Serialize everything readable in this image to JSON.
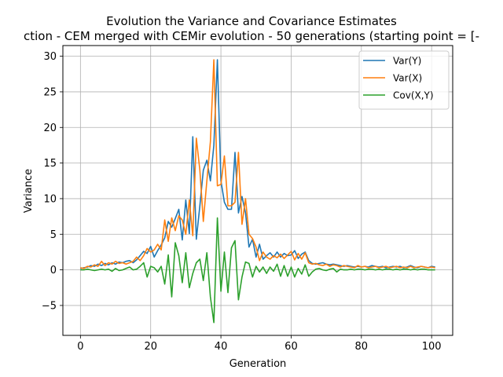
{
  "chart_data": {
    "type": "line",
    "title": "Evolution the Variance and Covariance Estimates",
    "subtitle": "ction - CEM merged with CEMir evolution - 50 generations (starting point = [-",
    "xlabel": "Generation",
    "ylabel": "Variance",
    "xlim": [
      -5,
      106
    ],
    "ylim": [
      -9.2,
      31.5
    ],
    "xticks": [
      0,
      20,
      40,
      60,
      80,
      100
    ],
    "yticks": [
      -5,
      0,
      5,
      10,
      15,
      20,
      25,
      30
    ],
    "grid": true,
    "legend_position": "top-right",
    "x": [
      0,
      1,
      2,
      3,
      4,
      5,
      6,
      7,
      8,
      9,
      10,
      11,
      12,
      13,
      14,
      15,
      16,
      17,
      18,
      19,
      20,
      21,
      22,
      23,
      24,
      25,
      26,
      27,
      28,
      29,
      30,
      31,
      32,
      33,
      34,
      35,
      36,
      37,
      38,
      39,
      40,
      41,
      42,
      43,
      44,
      45,
      46,
      47,
      48,
      49,
      50,
      51,
      52,
      53,
      54,
      55,
      56,
      57,
      58,
      59,
      60,
      61,
      62,
      63,
      64,
      65,
      66,
      67,
      68,
      69,
      70,
      71,
      72,
      73,
      74,
      75,
      76,
      77,
      78,
      79,
      80,
      81,
      82,
      83,
      84,
      85,
      86,
      87,
      88,
      89,
      90,
      91,
      92,
      93,
      94,
      95,
      96,
      97,
      98,
      99,
      100,
      101
    ],
    "series": [
      {
        "name": "Var(Y)",
        "color": "#1f77b4",
        "values": [
          0.2,
          0.3,
          0.4,
          0.6,
          0.5,
          0.8,
          0.6,
          0.9,
          0.7,
          1.0,
          0.8,
          1.1,
          1.0,
          1.2,
          1.3,
          1.0,
          1.4,
          2.0,
          2.6,
          2.3,
          3.3,
          1.8,
          2.7,
          3.5,
          4.5,
          6.8,
          6.0,
          7.2,
          8.5,
          4.2,
          9.8,
          5.1,
          18.7,
          4.3,
          9.0,
          14.0,
          15.4,
          12.5,
          17.5,
          29.5,
          12.5,
          9.5,
          8.5,
          8.5,
          16.5,
          8.0,
          10.3,
          8.0,
          3.2,
          4.3,
          1.8,
          3.6,
          1.5,
          2.0,
          2.4,
          1.8,
          2.5,
          1.8,
          2.3,
          2.0,
          2.1,
          2.7,
          1.6,
          2.2,
          2.5,
          1.3,
          0.9,
          0.8,
          0.9,
          1.0,
          0.8,
          0.7,
          0.8,
          0.7,
          0.6,
          0.5,
          0.6,
          0.5,
          0.4,
          0.5,
          0.4,
          0.5,
          0.4,
          0.6,
          0.5,
          0.4,
          0.5,
          0.3,
          0.4,
          0.5,
          0.4,
          0.5,
          0.3,
          0.4,
          0.6,
          0.4,
          0.3,
          0.5,
          0.4,
          0.3,
          0.5,
          0.4
        ]
      },
      {
        "name": "Var(X)",
        "color": "#ff7f0e",
        "values": [
          0.3,
          0.2,
          0.5,
          0.4,
          0.7,
          0.5,
          1.2,
          0.6,
          1.0,
          0.8,
          1.2,
          0.9,
          1.0,
          0.8,
          1.0,
          1.2,
          1.8,
          1.3,
          2.0,
          3.0,
          2.5,
          2.8,
          3.6,
          2.8,
          7.0,
          4.0,
          7.3,
          5.5,
          7.6,
          7.0,
          5.0,
          9.8,
          4.8,
          18.5,
          14.0,
          6.8,
          12.5,
          18.0,
          29.5,
          11.8,
          12.0,
          16.0,
          9.0,
          9.0,
          9.5,
          16.5,
          6.4,
          10.0,
          5.0,
          4.4,
          3.2,
          1.3,
          2.5,
          1.8,
          1.5,
          2.0,
          1.7,
          2.2,
          1.6,
          2.1,
          2.6,
          1.4,
          2.3,
          1.5,
          2.4,
          1.0,
          0.8,
          0.9,
          0.7,
          0.6,
          0.8,
          0.5,
          0.7,
          0.6,
          0.4,
          0.6,
          0.5,
          0.4,
          0.3,
          0.6,
          0.4,
          0.5,
          0.3,
          0.4,
          0.5,
          0.3,
          0.4,
          0.5,
          0.3,
          0.4,
          0.5,
          0.3,
          0.4,
          0.3,
          0.5,
          0.3,
          0.4,
          0.5,
          0.4,
          0.3,
          0.4,
          0.3
        ]
      },
      {
        "name": "Cov(X,Y)",
        "color": "#2ca02c",
        "values": [
          0.0,
          0.0,
          0.1,
          0.0,
          -0.1,
          0.0,
          0.1,
          0.0,
          0.1,
          -0.2,
          0.2,
          -0.1,
          0.0,
          0.2,
          0.4,
          0.0,
          0.1,
          0.5,
          1.0,
          -1.0,
          0.5,
          0.3,
          -0.3,
          0.5,
          -2.0,
          2.1,
          -3.8,
          3.8,
          2.0,
          -1.8,
          2.4,
          -2.5,
          -0.5,
          1.0,
          1.5,
          -1.5,
          2.4,
          -3.8,
          -7.4,
          7.3,
          -3.0,
          2.5,
          -3.2,
          3.1,
          4.1,
          -4.2,
          -1.0,
          1.1,
          0.9,
          -1.0,
          0.5,
          -0.3,
          0.4,
          -0.5,
          0.4,
          -0.2,
          0.8,
          -0.9,
          0.6,
          -0.9,
          0.4,
          -1.0,
          0.2,
          -0.6,
          0.7,
          -0.9,
          -0.3,
          0.1,
          0.2,
          0.0,
          -0.1,
          0.1,
          0.2,
          -0.3,
          0.1,
          0.0,
          0.0,
          0.1,
          0.0,
          0.1,
          0.1,
          0.0,
          0.1,
          0.1,
          0.0,
          0.1,
          0.0,
          0.1,
          0.1,
          0.0,
          0.1,
          0.0,
          0.1,
          0.1,
          0.0,
          0.1,
          0.0,
          0.1,
          0.1,
          0.0,
          0.0,
          0.0
        ]
      }
    ]
  }
}
